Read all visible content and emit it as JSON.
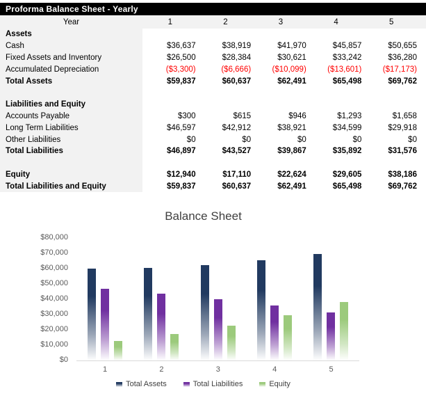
{
  "window": {
    "title": "Proforma Balance Sheet - Yearly"
  },
  "colors": {
    "title_bar_bg": "#000000",
    "title_bar_text": "#ffffff",
    "row_label_bg": "#F2F2F2",
    "negative_value": "#FF0000",
    "axis_line": "#D9D9D9",
    "axis_text": "#595959",
    "chart_title_text": "#404040"
  },
  "table": {
    "year_label": "Year",
    "year_columns": [
      "1",
      "2",
      "3",
      "4",
      "5"
    ],
    "rows": [
      {
        "label": "Assets",
        "style": "section",
        "values": [
          "",
          "",
          "",
          "",
          ""
        ]
      },
      {
        "label": "Cash",
        "style": "normal",
        "values": [
          "$36,637",
          "$38,919",
          "$41,970",
          "$45,857",
          "$50,655"
        ]
      },
      {
        "label": "Fixed Assets and Inventory",
        "style": "normal",
        "values": [
          "$26,500",
          "$28,384",
          "$30,621",
          "$33,242",
          "$36,280"
        ]
      },
      {
        "label": "Accumulated Depreciation",
        "style": "normal",
        "negative": true,
        "values": [
          "($3,300)",
          "($6,666)",
          "($10,099)",
          "($13,601)",
          "($17,173)"
        ]
      },
      {
        "label": "Total Assets",
        "style": "total",
        "values": [
          "$59,837",
          "$60,637",
          "$62,491",
          "$65,498",
          "$69,762"
        ]
      },
      {
        "label": "",
        "style": "blank",
        "values": [
          "",
          "",
          "",
          "",
          ""
        ]
      },
      {
        "label": "Liabilities and Equity",
        "style": "section",
        "values": [
          "",
          "",
          "",
          "",
          ""
        ]
      },
      {
        "label": "Accounts Payable",
        "style": "normal",
        "values": [
          "$300",
          "$615",
          "$946",
          "$1,293",
          "$1,658"
        ]
      },
      {
        "label": "Long Term Liabilities",
        "style": "normal",
        "values": [
          "$46,597",
          "$42,912",
          "$38,921",
          "$34,599",
          "$29,918"
        ]
      },
      {
        "label": "Other Liabilities",
        "style": "normal",
        "values": [
          "$0",
          "$0",
          "$0",
          "$0",
          "$0"
        ]
      },
      {
        "label": "Total Liabilities",
        "style": "total",
        "values": [
          "$46,897",
          "$43,527",
          "$39,867",
          "$35,892",
          "$31,576"
        ]
      },
      {
        "label": "",
        "style": "blank",
        "values": [
          "",
          "",
          "",
          "",
          ""
        ]
      },
      {
        "label": "Equity",
        "style": "total",
        "values": [
          "$12,940",
          "$17,110",
          "$22,624",
          "$29,605",
          "$38,186"
        ]
      },
      {
        "label": "Total Liabilities and Equity",
        "style": "total",
        "values": [
          "$59,837",
          "$60,637",
          "$62,491",
          "$65,498",
          "$69,762"
        ]
      }
    ]
  },
  "chart_data": {
    "type": "bar",
    "title": "Balance Sheet",
    "categories": [
      "1",
      "2",
      "3",
      "4",
      "5"
    ],
    "series": [
      {
        "name": "Total Assets",
        "color": "#213A60",
        "values": [
          59837,
          60637,
          62491,
          65498,
          69762
        ]
      },
      {
        "name": "Total Liabilities",
        "color": "#7030A0",
        "values": [
          46897,
          43527,
          39867,
          35892,
          31576
        ]
      },
      {
        "name": "Equity",
        "color": "#9CCA7C",
        "values": [
          12940,
          17110,
          22624,
          29605,
          38186
        ]
      }
    ],
    "ylim": [
      0,
      80000
    ],
    "ytick_step": 10000,
    "ytick_labels": [
      "$80,000",
      "$70,000",
      "$60,000",
      "$50,000",
      "$40,000",
      "$30,000",
      "$20,000",
      "$10,000",
      "$0"
    ],
    "xlabel": "",
    "ylabel": "",
    "gridlines": false,
    "legend_position": "bottom",
    "bar_style": "gradient-fade-to-white"
  }
}
